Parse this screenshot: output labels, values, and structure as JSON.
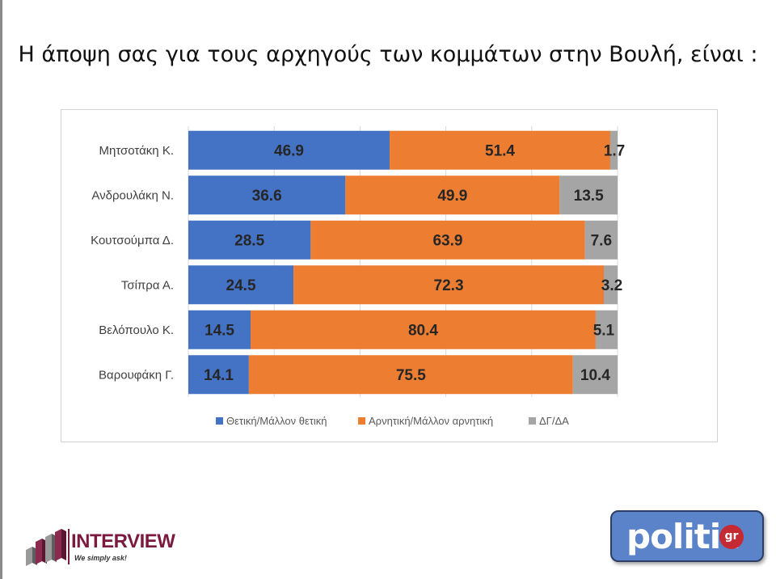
{
  "slide": {
    "title": "Η άποψη σας για τους αρχηγούς των κομμάτων στην Βουλή,  είναι :"
  },
  "chart_data": {
    "type": "bar",
    "orientation": "horizontal",
    "stacked": true,
    "categories": [
      "Μητσοτάκη Κ.",
      "Ανδρουλάκη Ν.",
      "Κουτσούμπα Δ.",
      "Τσίπρα Α.",
      "Βελόπουλο Κ.",
      "Βαρουφάκη Γ."
    ],
    "series": [
      {
        "name": "Θετική/Μάλλον θετική",
        "color": "#4472C4",
        "values": [
          46.9,
          36.6,
          28.5,
          24.5,
          14.5,
          14.1
        ]
      },
      {
        "name": "Αρνητική/Μάλλον αρνητική",
        "color": "#ED7D31",
        "values": [
          51.4,
          49.9,
          63.9,
          72.3,
          80.4,
          75.5
        ]
      },
      {
        "name": "ΔΓ/ΔΑ",
        "color": "#A5A5A5",
        "values": [
          1.7,
          13.5,
          7.6,
          3.2,
          5.1,
          10.4
        ]
      }
    ],
    "xlim": [
      0,
      100
    ],
    "grid": true,
    "legend_position": "bottom"
  },
  "logos": {
    "interview": {
      "name": "INTERVIEW",
      "tagline": "We simply ask!",
      "color": "#7a1a3e"
    },
    "politic": {
      "name": "politic",
      "badge": "gr",
      "color": "#5b83c9"
    }
  }
}
